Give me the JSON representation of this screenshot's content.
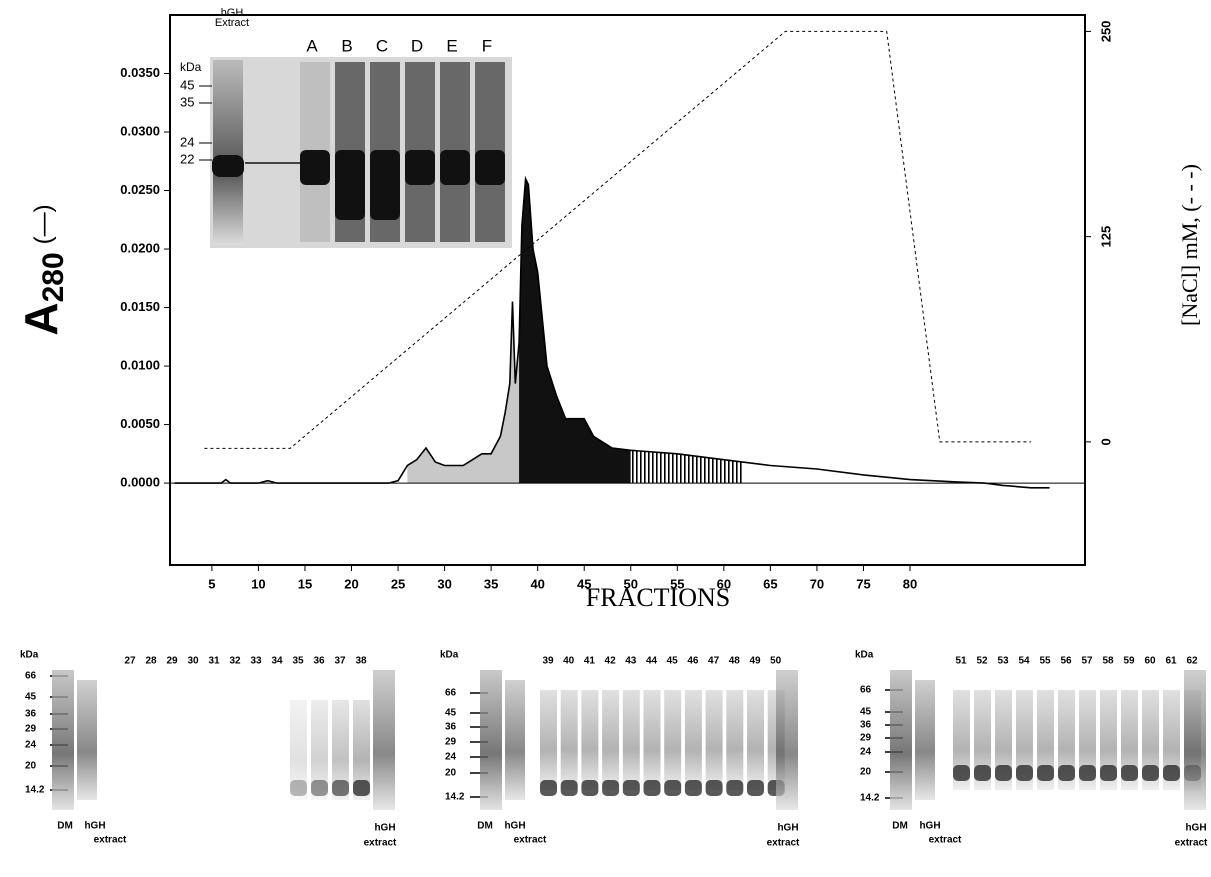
{
  "chart_data": {
    "type": "line",
    "ylabel": {
      "main": "A",
      "sub": "280",
      "symbol": "(—)"
    },
    "y2label": "[NaCl] mM, (- - -)",
    "xlabel": "FRACTIONS",
    "xlim": [
      0.5,
      98.8
    ],
    "xticks": [
      5,
      10,
      15,
      20,
      25,
      30,
      35,
      40,
      45,
      50,
      55,
      60,
      65,
      70,
      75,
      80
    ],
    "ylim": [
      -0.007,
      0.04
    ],
    "yticks": [
      {
        "value": 0,
        "label": "0.0000"
      },
      {
        "value": 0.005,
        "label": "0.0050"
      },
      {
        "value": 0.01,
        "label": "0.0100"
      },
      {
        "value": 0.015,
        "label": "0.0150"
      },
      {
        "value": 0.02,
        "label": "0.0200"
      },
      {
        "value": 0.025,
        "label": "0.0250"
      },
      {
        "value": 0.03,
        "label": "0.0300"
      },
      {
        "value": 0.035,
        "label": "0.0350"
      }
    ],
    "y2lim": [
      -75,
      260
    ],
    "y2ticks": [
      0,
      125,
      250
    ],
    "grid": false,
    "series": [
      {
        "color": "#000000",
        "x": [
          1,
          5,
          6,
          6.5,
          7,
          10,
          11,
          12,
          20,
          24,
          25,
          26,
          27,
          28,
          29,
          30,
          32,
          33,
          34,
          35,
          36,
          36.5,
          37,
          37.3,
          37.6,
          38,
          38.3,
          38.7,
          39,
          39.5,
          40,
          41,
          42,
          43,
          45,
          46,
          48,
          50,
          55,
          60,
          65,
          70,
          75,
          80,
          85,
          88,
          90,
          93,
          95
        ],
        "values": [
          0,
          0,
          0,
          0.0003,
          0,
          0,
          0.0002,
          0,
          0,
          0,
          0.0002,
          0.0015,
          0.002,
          0.003,
          0.0018,
          0.0015,
          0.0015,
          0.002,
          0.0025,
          0.0025,
          0.004,
          0.006,
          0.0085,
          0.0155,
          0.0085,
          0.012,
          0.022,
          0.026,
          0.0255,
          0.02,
          0.018,
          0.01,
          0.0075,
          0.0055,
          0.0055,
          0.004,
          0.003,
          0.0028,
          0.0025,
          0.002,
          0.0015,
          0.0012,
          0.0007,
          0.0003,
          0.0001,
          0,
          -0.0002,
          -0.0004,
          -0.0004
        ]
      },
      {
        "color": "#000000",
        "dash": "dashed",
        "axis": "y2",
        "x": [
          4.2,
          13.4,
          66.6,
          77.5,
          83.2,
          93
        ],
        "values": [
          -4,
          -4,
          250,
          250,
          0,
          0
        ]
      }
    ],
    "regions": [
      {
        "from": 26,
        "to": 38,
        "fill": "#c8c8c8"
      },
      {
        "from": 38,
        "to": 50,
        "fill": "#111111"
      },
      {
        "from": 50,
        "to": 62,
        "fill": "stripes"
      }
    ]
  },
  "inset_gel": {
    "extract_label": [
      "hGH",
      "Extract"
    ],
    "lanes": [
      "A",
      "B",
      "C",
      "D",
      "E",
      "F"
    ],
    "unit": "kDa",
    "markers": [
      45,
      35,
      24,
      22
    ]
  },
  "gels": [
    {
      "unit": "kDa",
      "markers": [
        66,
        45,
        36,
        29,
        24,
        20,
        14.2
      ],
      "lanes": [
        27,
        28,
        29,
        30,
        31,
        32,
        33,
        34,
        35,
        36,
        37,
        38
      ],
      "bottom_labels": [
        "DM",
        "hGH",
        "extract",
        "hGH",
        "extract"
      ]
    },
    {
      "unit": "kDa",
      "markers": [
        66,
        45,
        36,
        29,
        24,
        20,
        14.2
      ],
      "lanes": [
        39,
        40,
        41,
        42,
        43,
        44,
        45,
        46,
        47,
        48,
        49,
        50
      ],
      "bottom_labels": [
        "DM",
        "hGH",
        "extract",
        "hGH",
        "extract"
      ]
    },
    {
      "unit": "kDa",
      "markers": [
        66,
        45,
        36,
        29,
        24,
        20,
        14.2
      ],
      "lanes": [
        51,
        52,
        53,
        54,
        55,
        56,
        57,
        58,
        59,
        60,
        61,
        62
      ],
      "bottom_labels": [
        "DM",
        "hGH",
        "extract",
        "hGH",
        "extract"
      ]
    }
  ]
}
